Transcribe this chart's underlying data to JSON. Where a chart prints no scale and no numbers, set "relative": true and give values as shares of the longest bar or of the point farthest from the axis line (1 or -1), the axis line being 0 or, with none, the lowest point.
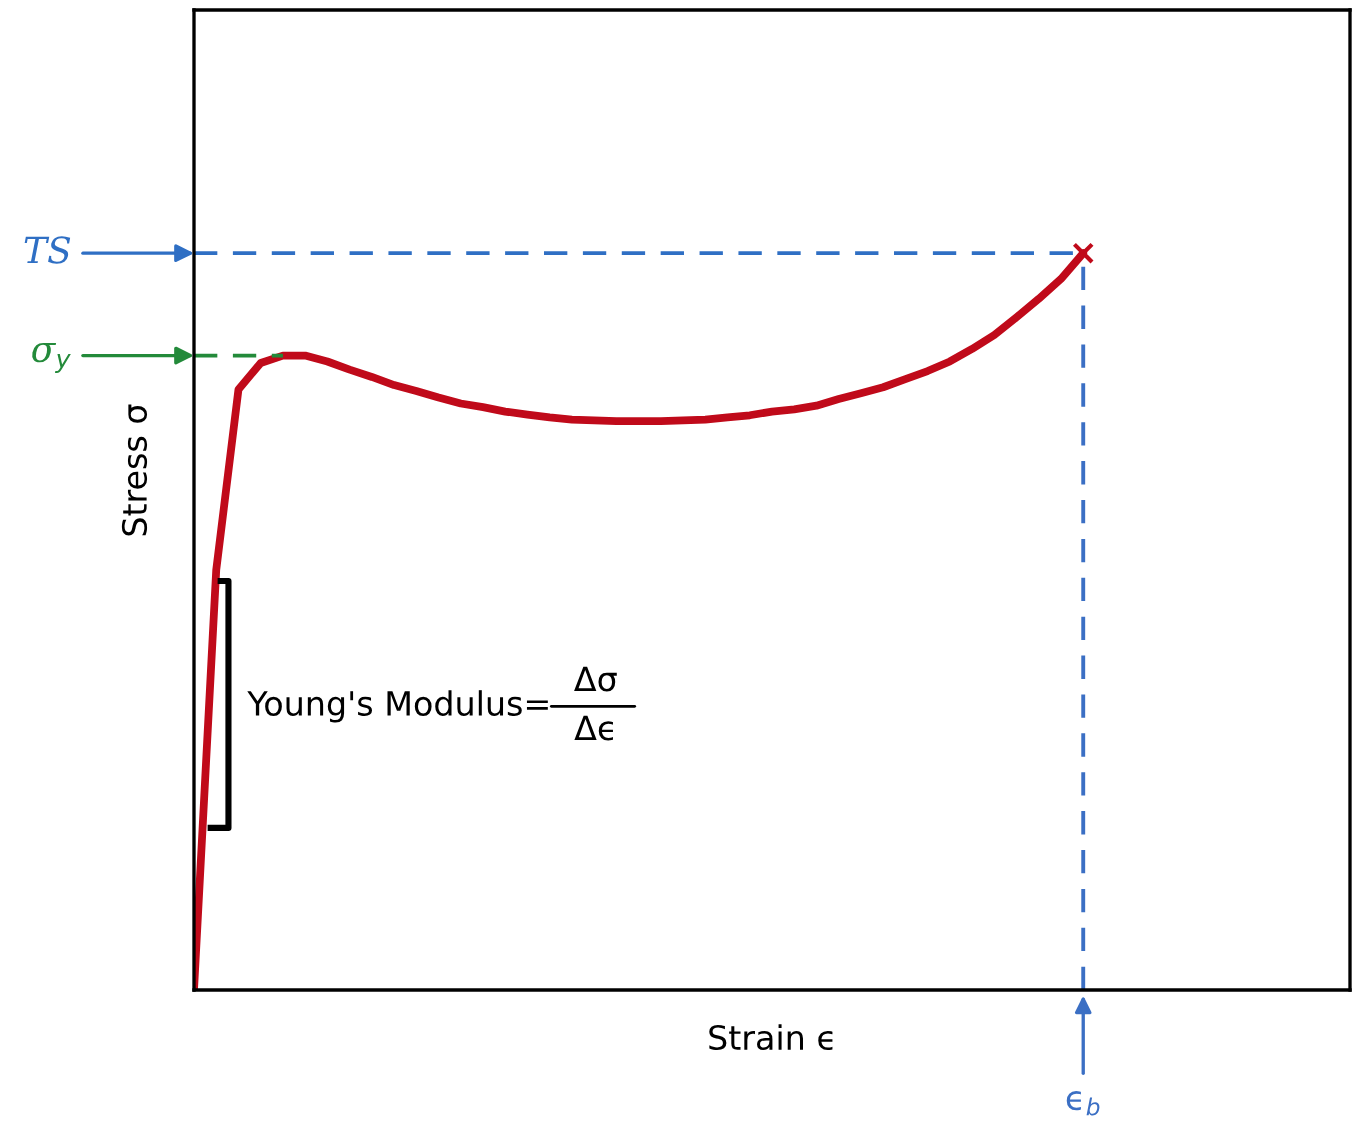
{
  "chart_data": {
    "type": "line",
    "relative": true,
    "xlabel": "Strain ϵ",
    "ylabel": "Stress σ",
    "categories": [
      null,
      null,
      null,
      null,
      null,
      null,
      null,
      null,
      null,
      null,
      null,
      null,
      null,
      null,
      null,
      null,
      null,
      null,
      null,
      null,
      null,
      null,
      null,
      null,
      null,
      null,
      null,
      null,
      null,
      null,
      null,
      null,
      null,
      null,
      null,
      null,
      null,
      null,
      null,
      null,
      null
    ],
    "series": [
      {
        "color": "#c00a1a",
        "values": [
          0,
          0.57,
          0.815,
          0.851,
          0.861,
          0.861,
          0.853,
          0.842,
          0.832,
          0.821,
          0.813,
          0.804,
          0.796,
          0.791,
          0.785,
          0.781,
          0.777,
          0.774,
          0.773,
          0.772,
          0.772,
          0.772,
          0.773,
          0.774,
          0.777,
          0.78,
          0.785,
          0.788,
          0.793,
          0.802,
          0.81,
          0.818,
          0.829,
          0.84,
          0.853,
          0.87,
          0.889,
          0.913,
          0.938,
          0.965,
          1
        ]
      }
    ],
    "ref_lines": [
      {
        "axis": "y",
        "value": 1,
        "label": "TS",
        "color": "#2f6fc4",
        "line_style": "dashed"
      },
      {
        "axis": "y",
        "value": 0.861,
        "label": "σ$_{y}$",
        "color": "#238a3a",
        "line_style": "dashed"
      },
      {
        "axis": "x",
        "label": "ϵ$_{b}$",
        "color": "#3b6fc4",
        "line_style": "dashed"
      }
    ],
    "annotations": [
      "Young's Modulus=",
      "Δσ",
      "Δϵ"
    ]
  }
}
